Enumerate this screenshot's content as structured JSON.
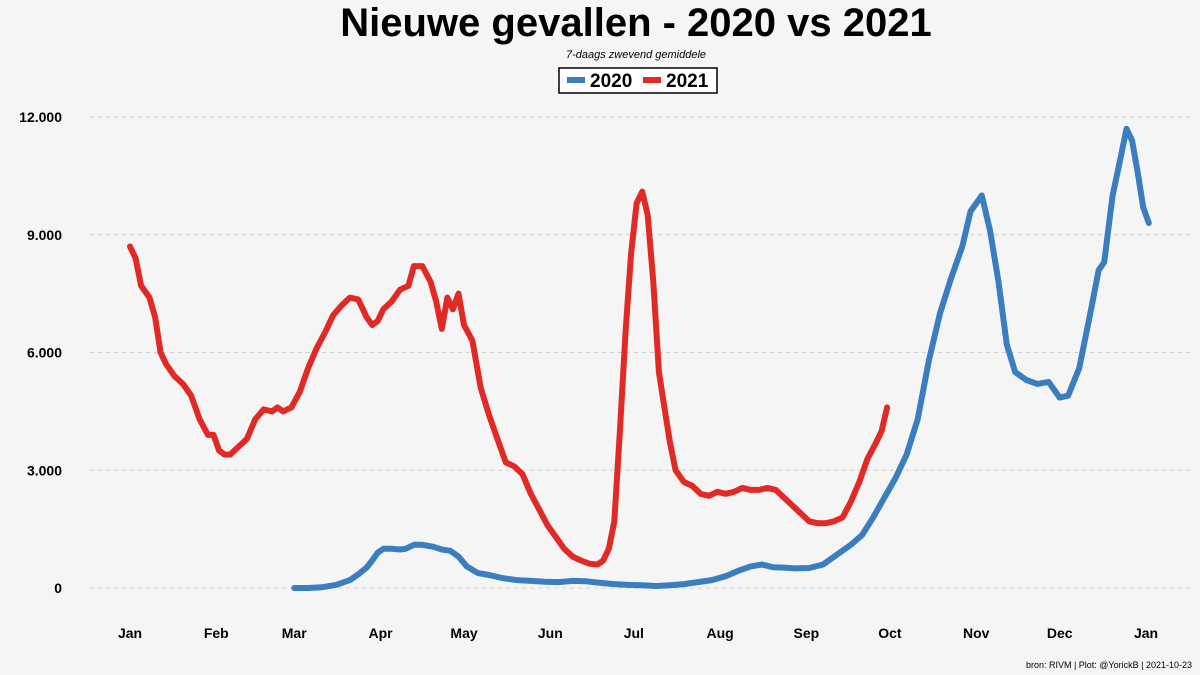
{
  "chart_data": {
    "type": "line",
    "title": "Nieuwe gevallen - 2020 vs 2021",
    "subtitle": "7-daags zwevend gemiddele",
    "caption": "bron: RIVM  | Plot: @YorickB |  2021-10-23",
    "xlabel": "",
    "ylabel": "",
    "ylim": [
      0,
      12000
    ],
    "yticks": [
      0,
      3000,
      6000,
      9000,
      12000
    ],
    "ytick_labels": [
      "0",
      "3.000",
      "6.000",
      "9.000",
      "12.000"
    ],
    "xlim": [
      1,
      366
    ],
    "xticks": [
      1,
      32,
      60,
      91,
      121,
      152,
      182,
      213,
      244,
      274,
      305,
      335,
      366
    ],
    "xtick_labels": [
      "Jan",
      "Feb",
      "Mar",
      "Apr",
      "May",
      "Jun",
      "Jul",
      "Aug",
      "Sep",
      "Oct",
      "Nov",
      "Dec",
      "Jan"
    ],
    "grid": "horizontal",
    "legend_position": "top-center",
    "series": [
      {
        "name": "2020",
        "color": "#3a7ebf",
        "points": [
          [
            60,
            0
          ],
          [
            65,
            0
          ],
          [
            70,
            20
          ],
          [
            75,
            80
          ],
          [
            80,
            200
          ],
          [
            83,
            350
          ],
          [
            86,
            520
          ],
          [
            88,
            700
          ],
          [
            90,
            900
          ],
          [
            92,
            1000
          ],
          [
            95,
            1000
          ],
          [
            98,
            980
          ],
          [
            100,
            1000
          ],
          [
            103,
            1100
          ],
          [
            106,
            1100
          ],
          [
            110,
            1050
          ],
          [
            113,
            980
          ],
          [
            116,
            950
          ],
          [
            119,
            800
          ],
          [
            122,
            550
          ],
          [
            126,
            380
          ],
          [
            130,
            330
          ],
          [
            135,
            250
          ],
          [
            140,
            200
          ],
          [
            145,
            180
          ],
          [
            150,
            160
          ],
          [
            155,
            150
          ],
          [
            160,
            180
          ],
          [
            165,
            170
          ],
          [
            170,
            130
          ],
          [
            175,
            100
          ],
          [
            180,
            80
          ],
          [
            185,
            70
          ],
          [
            190,
            50
          ],
          [
            195,
            70
          ],
          [
            200,
            100
          ],
          [
            205,
            150
          ],
          [
            210,
            200
          ],
          [
            215,
            300
          ],
          [
            220,
            450
          ],
          [
            224,
            550
          ],
          [
            228,
            600
          ],
          [
            232,
            530
          ],
          [
            236,
            520
          ],
          [
            240,
            500
          ],
          [
            245,
            510
          ],
          [
            250,
            600
          ],
          [
            255,
            850
          ],
          [
            260,
            1100
          ],
          [
            264,
            1350
          ],
          [
            268,
            1800
          ],
          [
            272,
            2300
          ],
          [
            276,
            2800
          ],
          [
            280,
            3400
          ],
          [
            284,
            4300
          ],
          [
            288,
            5800
          ],
          [
            292,
            7000
          ],
          [
            296,
            7900
          ],
          [
            300,
            8700
          ],
          [
            303,
            9600
          ],
          [
            307,
            10000
          ],
          [
            310,
            9100
          ],
          [
            313,
            7800
          ],
          [
            316,
            6200
          ],
          [
            319,
            5500
          ],
          [
            323,
            5300
          ],
          [
            327,
            5200
          ],
          [
            331,
            5250
          ],
          [
            335,
            4850
          ],
          [
            338,
            4900
          ],
          [
            342,
            5600
          ],
          [
            346,
            7000
          ],
          [
            349,
            8100
          ],
          [
            351,
            8300
          ],
          [
            354,
            10000
          ],
          [
            357,
            11000
          ],
          [
            359,
            11700
          ],
          [
            361,
            11400
          ],
          [
            363,
            10600
          ],
          [
            365,
            9700
          ],
          [
            367,
            9300
          ]
        ]
      },
      {
        "name": "2021",
        "color": "#e12a26",
        "points": [
          [
            1,
            8700
          ],
          [
            3,
            8400
          ],
          [
            5,
            7700
          ],
          [
            8,
            7400
          ],
          [
            10,
            6900
          ],
          [
            12,
            6000
          ],
          [
            14,
            5700
          ],
          [
            17,
            5400
          ],
          [
            20,
            5200
          ],
          [
            23,
            4900
          ],
          [
            26,
            4300
          ],
          [
            29,
            3900
          ],
          [
            31,
            3900
          ],
          [
            33,
            3500
          ],
          [
            35,
            3400
          ],
          [
            37,
            3400
          ],
          [
            40,
            3600
          ],
          [
            43,
            3800
          ],
          [
            46,
            4300
          ],
          [
            49,
            4550
          ],
          [
            52,
            4500
          ],
          [
            54,
            4600
          ],
          [
            56,
            4500
          ],
          [
            59,
            4600
          ],
          [
            62,
            5000
          ],
          [
            65,
            5600
          ],
          [
            68,
            6100
          ],
          [
            71,
            6500
          ],
          [
            74,
            6950
          ],
          [
            77,
            7200
          ],
          [
            80,
            7400
          ],
          [
            83,
            7350
          ],
          [
            86,
            6900
          ],
          [
            88,
            6700
          ],
          [
            90,
            6800
          ],
          [
            92,
            7100
          ],
          [
            95,
            7300
          ],
          [
            98,
            7600
          ],
          [
            101,
            7700
          ],
          [
            103,
            8200
          ],
          [
            106,
            8200
          ],
          [
            109,
            7800
          ],
          [
            111,
            7300
          ],
          [
            113,
            6600
          ],
          [
            115,
            7400
          ],
          [
            117,
            7100
          ],
          [
            119,
            7500
          ],
          [
            121,
            6700
          ],
          [
            124,
            6300
          ],
          [
            127,
            5100
          ],
          [
            130,
            4400
          ],
          [
            133,
            3800
          ],
          [
            136,
            3200
          ],
          [
            139,
            3100
          ],
          [
            142,
            2900
          ],
          [
            145,
            2400
          ],
          [
            148,
            2000
          ],
          [
            151,
            1600
          ],
          [
            154,
            1300
          ],
          [
            157,
            1000
          ],
          [
            160,
            800
          ],
          [
            163,
            700
          ],
          [
            166,
            620
          ],
          [
            169,
            600
          ],
          [
            171,
            700
          ],
          [
            173,
            1000
          ],
          [
            175,
            1700
          ],
          [
            177,
            4000
          ],
          [
            179,
            6500
          ],
          [
            181,
            8500
          ],
          [
            183,
            9800
          ],
          [
            185,
            10100
          ],
          [
            187,
            9500
          ],
          [
            189,
            7800
          ],
          [
            191,
            5500
          ],
          [
            193,
            4600
          ],
          [
            195,
            3700
          ],
          [
            197,
            3000
          ],
          [
            200,
            2700
          ],
          [
            203,
            2600
          ],
          [
            206,
            2400
          ],
          [
            209,
            2350
          ],
          [
            212,
            2450
          ],
          [
            215,
            2400
          ],
          [
            218,
            2450
          ],
          [
            221,
            2550
          ],
          [
            224,
            2500
          ],
          [
            227,
            2500
          ],
          [
            230,
            2550
          ],
          [
            233,
            2500
          ],
          [
            236,
            2300
          ],
          [
            239,
            2100
          ],
          [
            242,
            1900
          ],
          [
            245,
            1700
          ],
          [
            248,
            1650
          ],
          [
            251,
            1650
          ],
          [
            254,
            1700
          ],
          [
            257,
            1800
          ],
          [
            260,
            2200
          ],
          [
            263,
            2700
          ],
          [
            266,
            3300
          ],
          [
            269,
            3700
          ],
          [
            271,
            4000
          ],
          [
            273,
            4600
          ]
        ]
      }
    ]
  }
}
